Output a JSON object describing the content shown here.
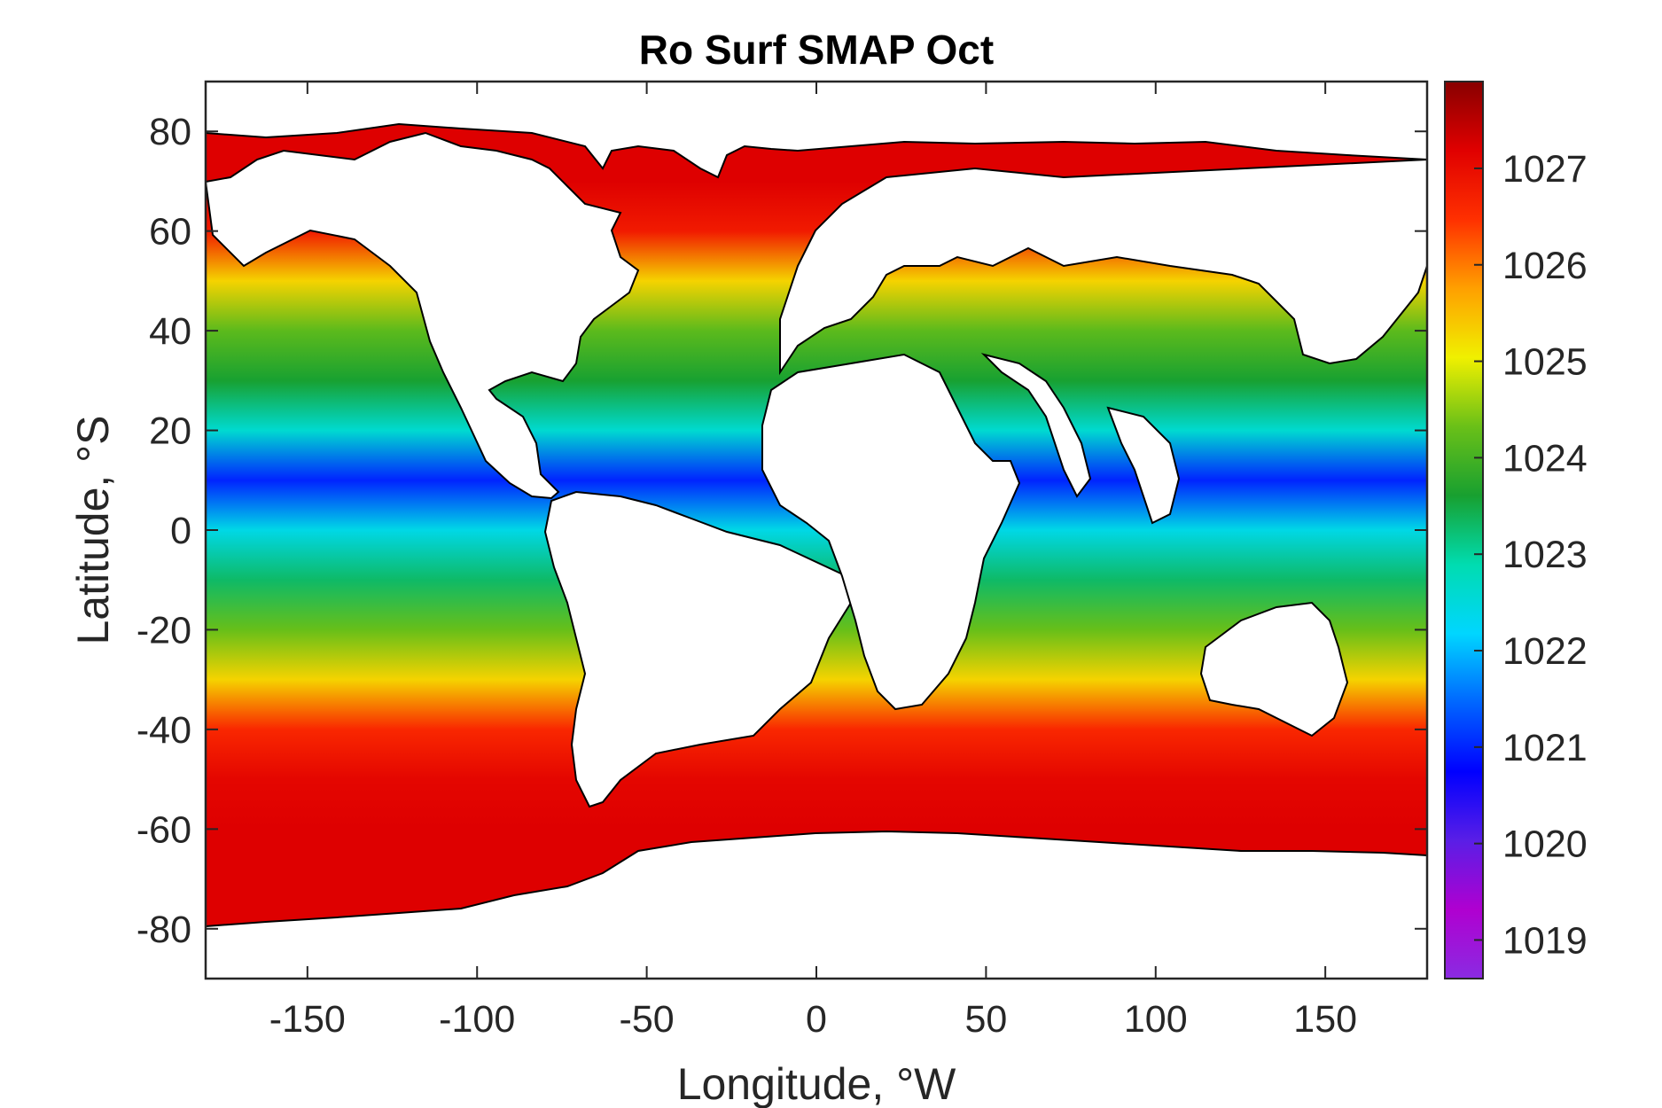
{
  "chart_data": {
    "type": "heatmap",
    "title": "Ro Surf SMAP Oct",
    "xlabel": "Longitude, °W",
    "ylabel": "Latitude, °S",
    "xlim": [
      -180,
      180
    ],
    "ylim": [
      -90,
      90
    ],
    "xticks": [
      -150,
      -100,
      -50,
      0,
      50,
      100,
      150
    ],
    "yticks": [
      80,
      60,
      40,
      20,
      0,
      -20,
      -40,
      -60,
      -80
    ],
    "colorbar": {
      "ticks": [
        1027,
        1026,
        1025,
        1024,
        1023,
        1022,
        1021,
        1020,
        1019
      ],
      "range": [
        1018.6,
        1027.9
      ],
      "colormap": [
        "#8a2be2",
        "#b000d0",
        "#5a1ee6",
        "#0000ff",
        "#0066ff",
        "#00d6ff",
        "#00dcb0",
        "#18a030",
        "#6ac018",
        "#f0f000",
        "#ffa000",
        "#ff3000",
        "#e00000",
        "#880000"
      ]
    },
    "latitude_band_values": [
      {
        "lat": 70,
        "value": 1027.2
      },
      {
        "lat": 60,
        "value": 1026.8
      },
      {
        "lat": 50,
        "value": 1025.3
      },
      {
        "lat": 40,
        "value": 1024.2
      },
      {
        "lat": 30,
        "value": 1023.6
      },
      {
        "lat": 20,
        "value": 1022.6
      },
      {
        "lat": 10,
        "value": 1021.0
      },
      {
        "lat": 0,
        "value": 1022.4
      },
      {
        "lat": -10,
        "value": 1023.3
      },
      {
        "lat": -20,
        "value": 1024.3
      },
      {
        "lat": -30,
        "value": 1025.3
      },
      {
        "lat": -40,
        "value": 1026.6
      },
      {
        "lat": -50,
        "value": 1027.1
      },
      {
        "lat": -60,
        "value": 1027.2
      }
    ],
    "grid": false
  }
}
